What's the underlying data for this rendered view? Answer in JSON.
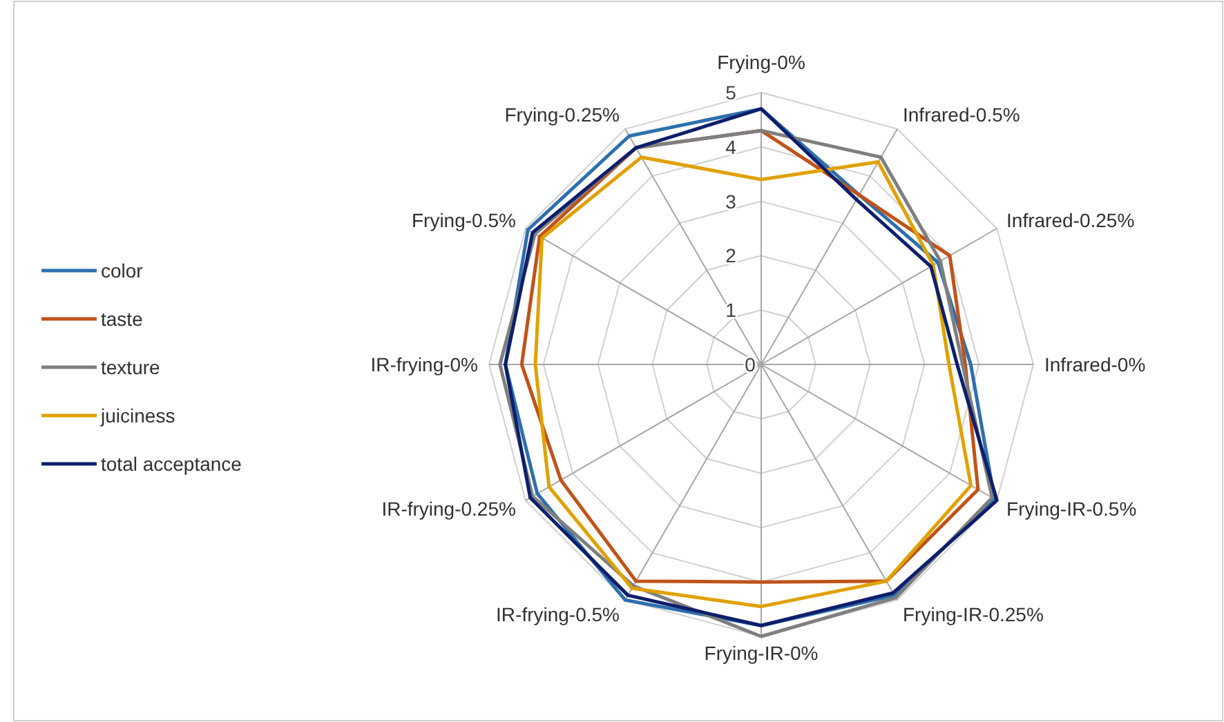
{
  "chart_data": {
    "type": "radar",
    "categories": [
      "Frying-0%",
      "Infrared-0.5%",
      "Infrared-0.25%",
      "Infrared-0%",
      "Frying-IR-0.5%",
      "Frying-IR-0.25%",
      "Frying-IR-0%",
      "IR-frying-0.5%",
      "IR-frying-0.25%",
      "IR-frying-0%",
      "Frying-0.5%",
      "Frying-0.25%"
    ],
    "series": [
      {
        "name": "color",
        "color": "#2e6fad",
        "values": [
          4.7,
          3.6,
          3.75,
          3.85,
          4.95,
          4.9,
          4.8,
          5.0,
          4.75,
          4.7,
          4.95,
          4.85
        ]
      },
      {
        "name": "taste",
        "color": "#c0531a",
        "values": [
          4.3,
          3.6,
          4.0,
          3.75,
          4.6,
          4.6,
          4.0,
          4.6,
          4.25,
          4.4,
          4.7,
          4.6
        ]
      },
      {
        "name": "texture",
        "color": "#7f7f7f",
        "values": [
          4.3,
          4.4,
          3.8,
          3.7,
          4.9,
          4.95,
          5.0,
          4.7,
          4.85,
          4.8,
          4.8,
          4.6
        ]
      },
      {
        "name": "juiciness",
        "color": "#e0a100",
        "values": [
          3.4,
          4.3,
          3.65,
          3.45,
          4.45,
          4.6,
          4.45,
          4.75,
          4.5,
          4.15,
          4.65,
          4.4
        ]
      },
      {
        "name": "total acceptance",
        "color": "#0d1f6b",
        "values": [
          4.7,
          3.5,
          3.6,
          3.6,
          5.0,
          4.85,
          4.8,
          4.9,
          4.9,
          4.7,
          4.85,
          4.6
        ]
      }
    ],
    "ylim": [
      0,
      5
    ],
    "yticks": [
      0,
      1,
      2,
      3,
      4,
      5
    ],
    "grid": true,
    "legend": "left"
  }
}
